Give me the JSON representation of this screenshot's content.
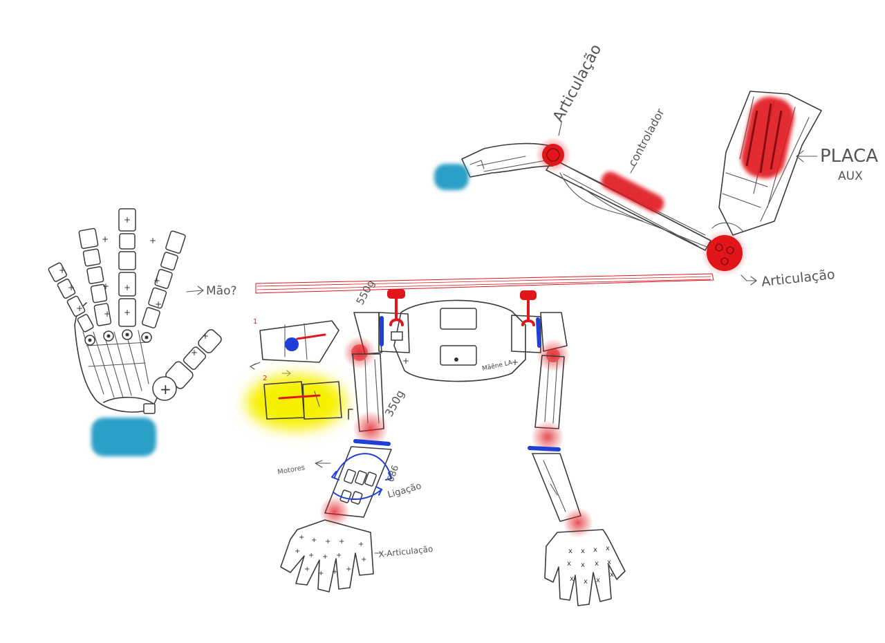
{
  "labels": {
    "articulacao_top": "Articulação",
    "controlador": "controlador",
    "placa_aux_line1": "PLACA",
    "placa_aux_line2": "AUX",
    "articulacao_right": "Articulação",
    "mao": "Mão?",
    "weight_top": "550g",
    "weight_leg": "350g",
    "motores": "Motores",
    "num_686": "686",
    "ligacao": "Ligação",
    "x_articulacao": "X-Articulação",
    "body_text": "Mãêne LA",
    "step_1": "1",
    "step_2": "2"
  },
  "colors": {
    "joint_red": "#e0161b",
    "band_blue": "#1f3fd6",
    "cyan_highlight": "#2a9fc7",
    "yellow_highlight": "#f6f000",
    "sketch_gray": "#3a3a3a"
  }
}
